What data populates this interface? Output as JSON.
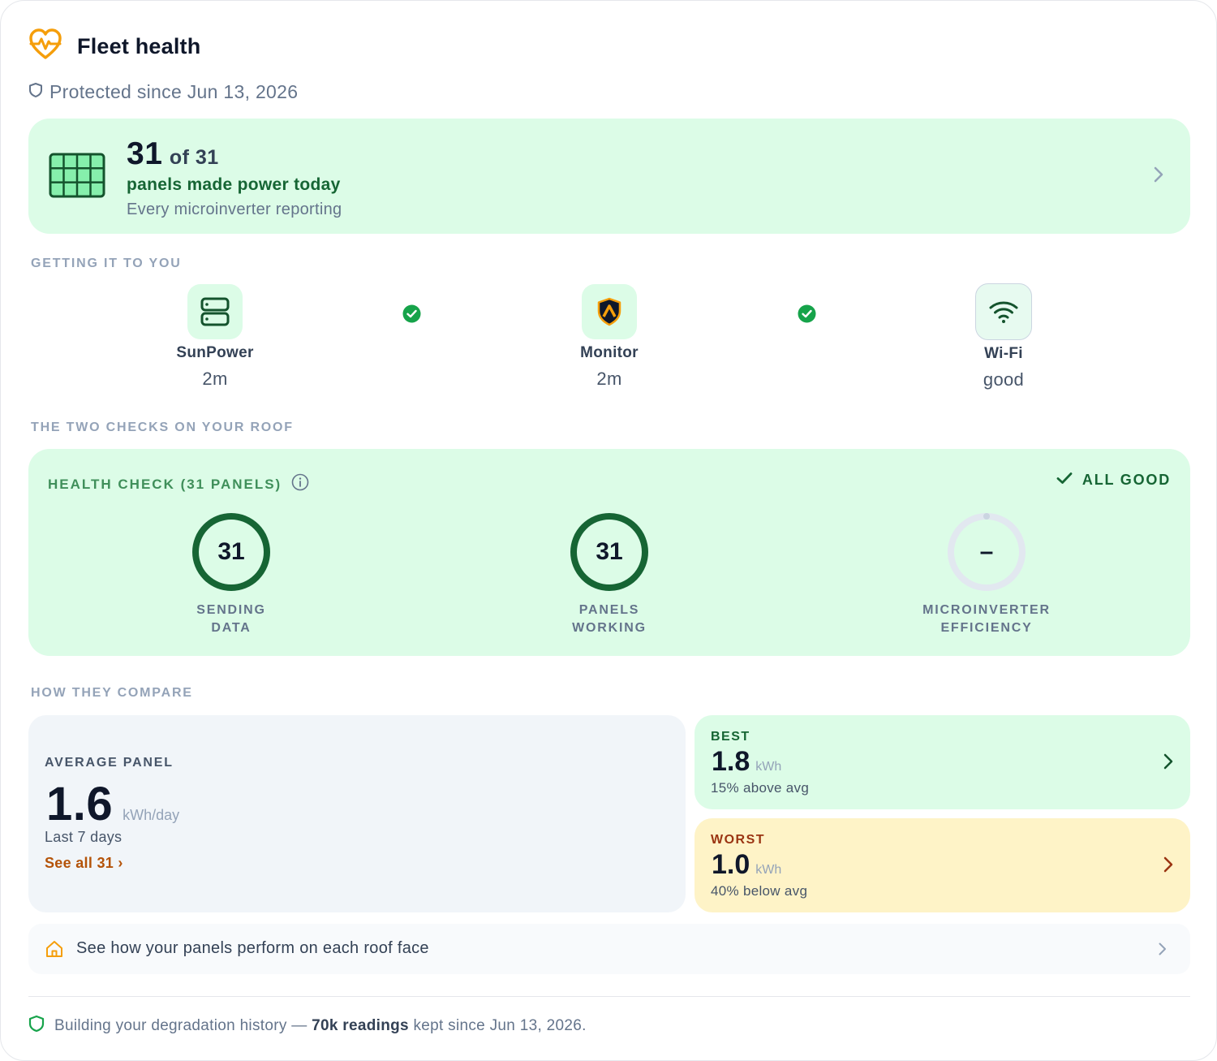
{
  "header": {
    "title": "Fleet health",
    "subtitle": "Protected since Jun 13, 2026"
  },
  "hero": {
    "count": "31",
    "of_total": "of 31",
    "headline": "panels made power today",
    "detail": "Every microinverter reporting"
  },
  "pipeline": {
    "section_label": "GETTING IT TO YOU",
    "nodes": [
      {
        "name": "SunPower",
        "value": "2m",
        "icon": "server-icon"
      },
      {
        "name": "Monitor",
        "value": "2m",
        "icon": "shield-logo-icon"
      },
      {
        "name": "Wi-Fi",
        "value": "good",
        "icon": "wifi-icon"
      }
    ]
  },
  "checks": {
    "section_label": "THE TWO CHECKS ON YOUR ROOF",
    "title": "HEALTH CHECK (31 PANELS)",
    "status": "ALL GOOD",
    "gauges": [
      {
        "value": "31",
        "label_line1": "SENDING",
        "label_line2": "DATA",
        "fraction": 1.0
      },
      {
        "value": "31",
        "label_line1": "PANELS",
        "label_line2": "WORKING",
        "fraction": 1.0
      },
      {
        "value": "–",
        "label_line1": "MICROINVERTER",
        "label_line2": "EFFICIENCY",
        "fraction": 0.0
      }
    ]
  },
  "compare": {
    "section_label": "HOW THEY COMPARE",
    "average": {
      "label": "AVERAGE PANEL",
      "value": "1.6",
      "unit": "kWh/day",
      "period": "Last 7 days",
      "link": "See all 31 ›"
    },
    "best": {
      "label": "BEST",
      "value": "1.8",
      "unit": "kWh",
      "note": "15% above avg"
    },
    "worst": {
      "label": "WORST",
      "value": "1.0",
      "unit": "kWh",
      "note": "40% below avg"
    }
  },
  "roof": {
    "text": "See how your panels perform on each roof face"
  },
  "footer": {
    "prefix": "Building your degradation history —",
    "strong": "70k readings",
    "suffix": "kept since Jun 13, 2026."
  },
  "colors": {
    "accent_orange": "#f59e0b",
    "green_bg": "#dcfce7",
    "green_dark": "#166534",
    "check_green": "#16a34a",
    "amber_bg": "#fef3c7"
  }
}
